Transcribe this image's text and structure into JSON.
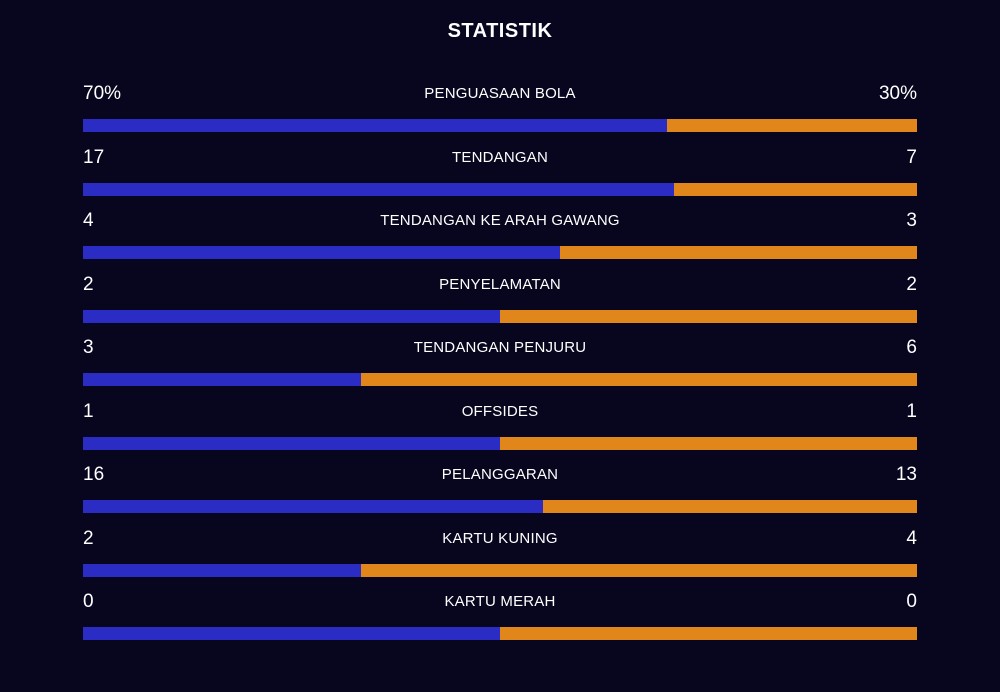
{
  "title": "STATISTIK",
  "colors": {
    "background": "#07061e",
    "home": "#2a2cc4",
    "away": "#e0861a"
  },
  "stats": [
    {
      "label": "PENGUASAAN BOLA",
      "left": "70%",
      "right": "30%",
      "home_share": 0.7
    },
    {
      "label": "TENDANGAN",
      "left": "17",
      "right": "7",
      "home_share": 0.7083
    },
    {
      "label": "TENDANGAN KE ARAH GAWANG",
      "left": "4",
      "right": "3",
      "home_share": 0.5714
    },
    {
      "label": "PENYELAMATAN",
      "left": "2",
      "right": "2",
      "home_share": 0.5
    },
    {
      "label": "TENDANGAN PENJURU",
      "left": "3",
      "right": "6",
      "home_share": 0.3333
    },
    {
      "label": "OFFSIDES",
      "left": "1",
      "right": "1",
      "home_share": 0.5
    },
    {
      "label": "PELANGGARAN",
      "left": "16",
      "right": "13",
      "home_share": 0.5517
    },
    {
      "label": "KARTU KUNING",
      "left": "2",
      "right": "4",
      "home_share": 0.3333
    },
    {
      "label": "KARTU MERAH",
      "left": "0",
      "right": "0",
      "home_share": 0.5
    }
  ]
}
